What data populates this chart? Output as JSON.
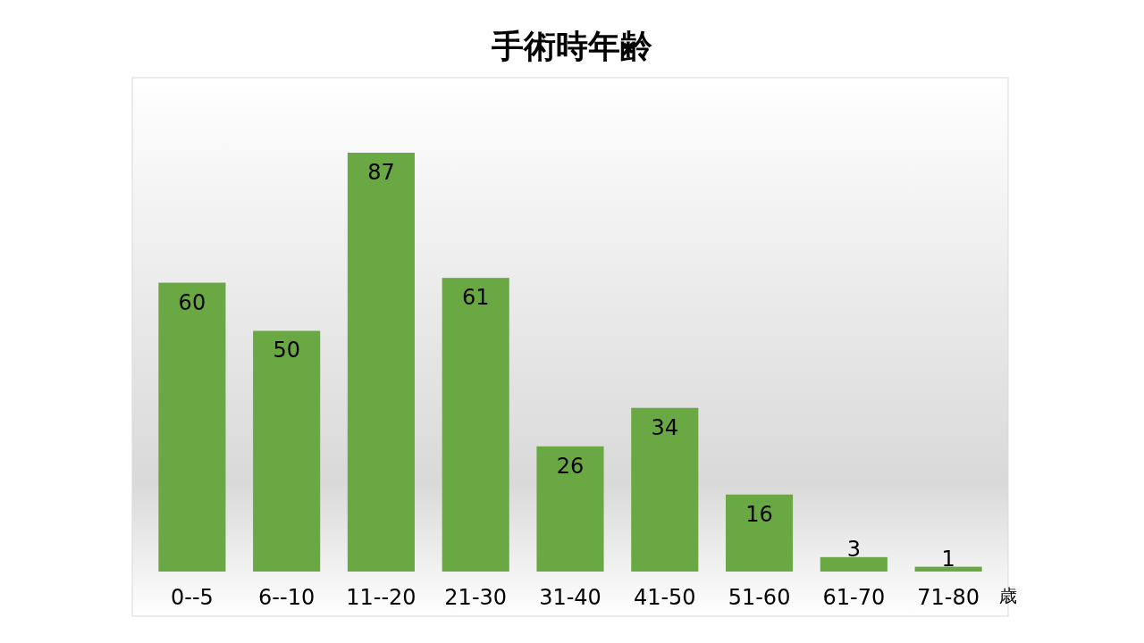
{
  "chart_data": {
    "type": "bar",
    "title": "手術時年齢",
    "xlabel": "歳",
    "categories": [
      "0--5",
      "6--10",
      "11--20",
      "21-30",
      "31-40",
      "41-50",
      "51-60",
      "61-70",
      "71-80"
    ],
    "values": [
      60,
      50,
      87,
      61,
      26,
      34,
      16,
      3,
      1
    ],
    "color": "#6aa843",
    "data_labels": true
  }
}
